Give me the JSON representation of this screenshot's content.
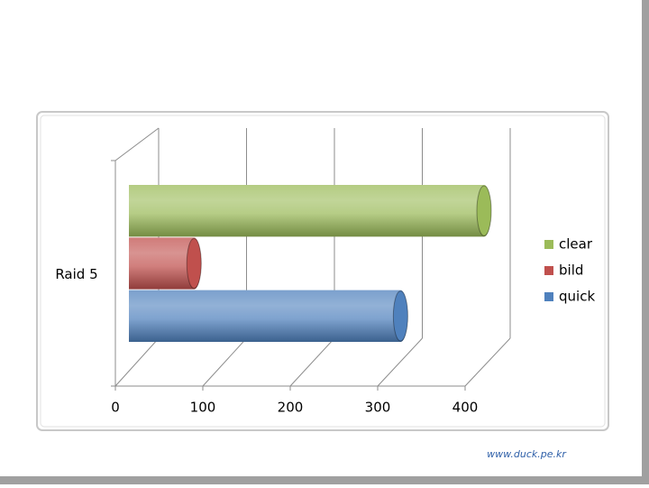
{
  "chart_data": {
    "type": "bar3d",
    "orientation": "horizontal",
    "categories": [
      "Raid 5"
    ],
    "series": [
      {
        "name": "clear",
        "color": "#9bbb59",
        "values": [
          400
        ]
      },
      {
        "name": "bild",
        "color": "#c0504d",
        "values": [
          70
        ]
      },
      {
        "name": "quick",
        "color": "#4f81bd",
        "values": [
          305
        ]
      }
    ],
    "xlim": [
      0,
      400
    ],
    "xticks": [
      0,
      100,
      200,
      300,
      400
    ],
    "grid": true,
    "legend": "right"
  },
  "watermark": "www.duck.pe.kr"
}
